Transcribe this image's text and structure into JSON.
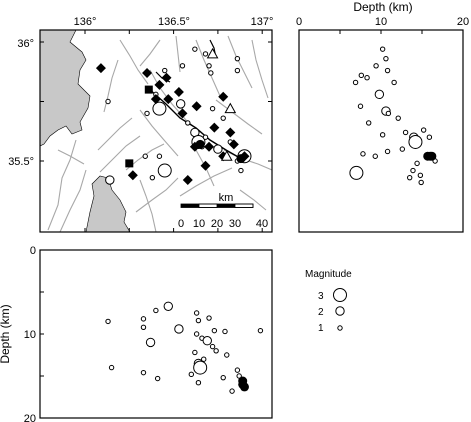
{
  "map": {
    "lon_ticks": [
      "136°",
      "136.5°",
      "137°"
    ],
    "lat_ticks": [
      "36°",
      "35.5°"
    ],
    "scale_label": "km",
    "scale_ticks": [
      "0",
      "10",
      "20",
      "30",
      "40"
    ],
    "land_color": "#c8c8c8",
    "fault_color": "#a8a8a8",
    "events": [
      {
        "lon": 136.55,
        "lat": 35.9,
        "size": 1
      },
      {
        "lon": 136.62,
        "lat": 35.97,
        "size": 1
      },
      {
        "lon": 136.68,
        "lat": 35.95,
        "size": 1
      },
      {
        "lon": 136.7,
        "lat": 35.9,
        "size": 1
      },
      {
        "lon": 136.71,
        "lat": 35.87,
        "size": 1
      },
      {
        "lon": 136.45,
        "lat": 35.88,
        "size": 1
      },
      {
        "lon": 136.4,
        "lat": 35.78,
        "size": 1
      },
      {
        "lon": 136.42,
        "lat": 35.72,
        "size": 3
      },
      {
        "lon": 136.35,
        "lat": 35.7,
        "size": 1
      },
      {
        "lon": 136.54,
        "lat": 35.74,
        "size": 2
      },
      {
        "lon": 136.58,
        "lat": 35.66,
        "size": 1
      },
      {
        "lon": 136.62,
        "lat": 35.62,
        "size": 2
      },
      {
        "lon": 136.64,
        "lat": 35.58,
        "size": 3
      },
      {
        "lon": 136.66,
        "lat": 35.56,
        "size": 1
      },
      {
        "lon": 136.68,
        "lat": 35.6,
        "size": 1
      },
      {
        "lon": 136.72,
        "lat": 35.72,
        "size": 1
      },
      {
        "lon": 136.78,
        "lat": 35.68,
        "size": 1
      },
      {
        "lon": 136.82,
        "lat": 35.58,
        "size": 1
      },
      {
        "lon": 136.75,
        "lat": 35.55,
        "size": 2
      },
      {
        "lon": 136.86,
        "lat": 35.5,
        "size": 1
      },
      {
        "lon": 136.88,
        "lat": 35.46,
        "size": 1
      },
      {
        "lon": 136.9,
        "lat": 35.52,
        "size": 3
      },
      {
        "lon": 136.34,
        "lat": 35.52,
        "size": 1
      },
      {
        "lon": 136.42,
        "lat": 35.52,
        "size": 1
      },
      {
        "lon": 136.45,
        "lat": 35.46,
        "size": 3
      },
      {
        "lon": 136.38,
        "lat": 35.43,
        "size": 1
      },
      {
        "lon": 136.14,
        "lat": 35.42,
        "size": 2
      },
      {
        "lon": 136.13,
        "lat": 35.75,
        "size": 1
      },
      {
        "lon": 136.86,
        "lat": 35.93,
        "size": 1
      },
      {
        "lon": 136.86,
        "lat": 35.88,
        "size": 1
      }
    ],
    "diamonds": [
      [
        136.09,
        35.89
      ],
      [
        136.35,
        35.87
      ],
      [
        136.42,
        35.82
      ],
      [
        136.46,
        35.85
      ],
      [
        136.4,
        35.76
      ],
      [
        136.47,
        35.76
      ],
      [
        136.53,
        35.79
      ],
      [
        136.55,
        35.7
      ],
      [
        136.63,
        35.73
      ],
      [
        136.78,
        35.77
      ],
      [
        136.82,
        35.62
      ],
      [
        136.73,
        35.64
      ],
      [
        136.62,
        35.56
      ],
      [
        136.7,
        35.56
      ],
      [
        136.84,
        35.57
      ],
      [
        136.78,
        35.52
      ],
      [
        136.68,
        35.48
      ],
      [
        136.58,
        35.42
      ],
      [
        136.27,
        35.44
      ],
      [
        136.9,
        35.52
      ]
    ],
    "squares": [
      [
        136.36,
        35.8
      ],
      [
        136.25,
        35.49
      ]
    ],
    "triangles": [
      [
        136.72,
        35.95
      ],
      [
        136.82,
        35.72
      ],
      [
        136.8,
        35.52
      ]
    ],
    "filled_circles": [
      [
        136.65,
        35.57
      ],
      [
        136.88,
        35.51
      ]
    ]
  },
  "depth_right": {
    "axis_title": "Depth (km)",
    "ticks": [
      "0",
      "10",
      "20"
    ],
    "events": [
      {
        "depth": 10.2,
        "lat": 35.97,
        "size": 1
      },
      {
        "depth": 10.6,
        "lat": 35.93,
        "size": 1
      },
      {
        "depth": 9.4,
        "lat": 35.9,
        "size": 1
      },
      {
        "depth": 10.8,
        "lat": 35.88,
        "size": 1
      },
      {
        "depth": 7.6,
        "lat": 35.86,
        "size": 1
      },
      {
        "depth": 8.3,
        "lat": 35.85,
        "size": 1
      },
      {
        "depth": 6.9,
        "lat": 35.83,
        "size": 1
      },
      {
        "depth": 11.6,
        "lat": 35.83,
        "size": 1
      },
      {
        "depth": 9.8,
        "lat": 35.78,
        "size": 2
      },
      {
        "depth": 7.5,
        "lat": 35.73,
        "size": 1
      },
      {
        "depth": 10.6,
        "lat": 35.71,
        "size": 2
      },
      {
        "depth": 10.9,
        "lat": 35.7,
        "size": 1
      },
      {
        "depth": 12.1,
        "lat": 35.68,
        "size": 1
      },
      {
        "depth": 8.5,
        "lat": 35.66,
        "size": 1
      },
      {
        "depth": 13.0,
        "lat": 35.62,
        "size": 1
      },
      {
        "depth": 10.2,
        "lat": 35.61,
        "size": 1
      },
      {
        "depth": 15.2,
        "lat": 35.63,
        "size": 1
      },
      {
        "depth": 14.0,
        "lat": 35.6,
        "size": 2
      },
      {
        "depth": 14.2,
        "lat": 35.58,
        "size": 3
      },
      {
        "depth": 15.9,
        "lat": 35.6,
        "size": 1
      },
      {
        "depth": 12.6,
        "lat": 35.55,
        "size": 1
      },
      {
        "depth": 10.8,
        "lat": 35.54,
        "size": 1
      },
      {
        "depth": 7.8,
        "lat": 35.53,
        "size": 1
      },
      {
        "depth": 9.3,
        "lat": 35.52,
        "size": 1
      },
      {
        "depth": 16.6,
        "lat": 35.5,
        "size": 1
      },
      {
        "depth": 14.4,
        "lat": 35.49,
        "size": 1
      },
      {
        "depth": 13.9,
        "lat": 35.46,
        "size": 1
      },
      {
        "depth": 7.0,
        "lat": 35.45,
        "size": 3
      },
      {
        "depth": 14.8,
        "lat": 35.44,
        "size": 1
      },
      {
        "depth": 13.5,
        "lat": 35.43,
        "size": 1
      },
      {
        "depth": 14.9,
        "lat": 35.41,
        "size": 1
      }
    ],
    "filled": [
      [
        15.7,
        35.52
      ],
      [
        16.0,
        35.52
      ],
      [
        16.2,
        35.52
      ]
    ]
  },
  "depth_bottom": {
    "axis_title": "Depth (km)",
    "ticks": [
      "0",
      "10",
      "20"
    ],
    "events": [
      {
        "lon": 136.13,
        "depth": 8.5,
        "size": 1
      },
      {
        "lon": 136.15,
        "depth": 14.0,
        "size": 1
      },
      {
        "lon": 136.33,
        "depth": 8.2,
        "size": 1
      },
      {
        "lon": 136.33,
        "depth": 9.2,
        "size": 1
      },
      {
        "lon": 136.33,
        "depth": 14.6,
        "size": 1
      },
      {
        "lon": 136.37,
        "depth": 11.0,
        "size": 2
      },
      {
        "lon": 136.4,
        "depth": 7.2,
        "size": 1
      },
      {
        "lon": 136.41,
        "depth": 15.3,
        "size": 1
      },
      {
        "lon": 136.47,
        "depth": 6.7,
        "size": 2
      },
      {
        "lon": 136.53,
        "depth": 9.4,
        "size": 2
      },
      {
        "lon": 136.6,
        "depth": 14.8,
        "size": 1
      },
      {
        "lon": 136.63,
        "depth": 7.5,
        "size": 1
      },
      {
        "lon": 136.64,
        "depth": 8.4,
        "size": 1
      },
      {
        "lon": 136.63,
        "depth": 10.0,
        "size": 1
      },
      {
        "lon": 136.66,
        "depth": 10.5,
        "size": 1
      },
      {
        "lon": 136.62,
        "depth": 12.2,
        "size": 1
      },
      {
        "lon": 136.64,
        "depth": 13.5,
        "size": 2
      },
      {
        "lon": 136.65,
        "depth": 14.0,
        "size": 3
      },
      {
        "lon": 136.67,
        "depth": 13.0,
        "size": 1
      },
      {
        "lon": 136.69,
        "depth": 10.8,
        "size": 2
      },
      {
        "lon": 136.72,
        "depth": 11.5,
        "size": 1
      },
      {
        "lon": 136.7,
        "depth": 8.1,
        "size": 1
      },
      {
        "lon": 136.73,
        "depth": 9.6,
        "size": 1
      },
      {
        "lon": 136.74,
        "depth": 12.0,
        "size": 1
      },
      {
        "lon": 136.64,
        "depth": 15.8,
        "size": 1
      },
      {
        "lon": 136.79,
        "depth": 9.7,
        "size": 1
      },
      {
        "lon": 136.8,
        "depth": 12.5,
        "size": 1
      },
      {
        "lon": 136.78,
        "depth": 15.2,
        "size": 1
      },
      {
        "lon": 136.83,
        "depth": 16.8,
        "size": 1
      },
      {
        "lon": 136.86,
        "depth": 14.3,
        "size": 1
      },
      {
        "lon": 136.87,
        "depth": 15.0,
        "size": 1
      },
      {
        "lon": 136.99,
        "depth": 9.6,
        "size": 1
      }
    ],
    "filled": [
      [
        136.89,
        15.6
      ],
      [
        136.89,
        16.0
      ],
      [
        136.9,
        16.3
      ]
    ]
  },
  "legend": {
    "title": "Magnitude",
    "items": [
      {
        "label": "3",
        "size": 3
      },
      {
        "label": "2",
        "size": 2
      },
      {
        "label": "1",
        "size": 1
      }
    ]
  }
}
